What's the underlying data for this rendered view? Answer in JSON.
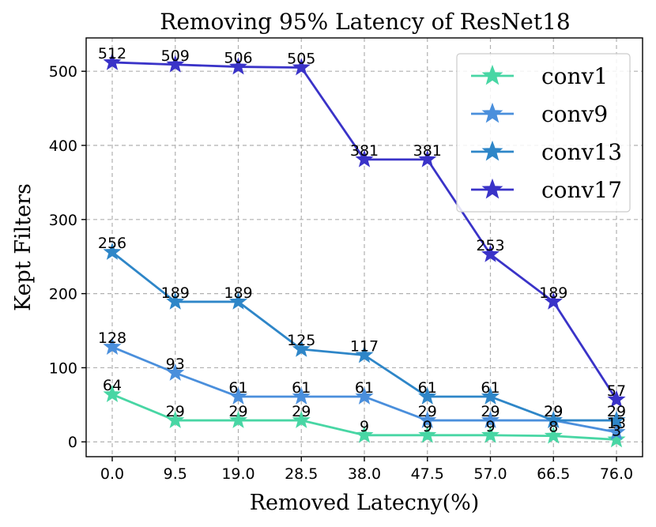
{
  "chart_data": {
    "type": "line",
    "title": "Removing 95%  Latency of ResNet18",
    "xlabel": "Removed Latecny(%)",
    "ylabel": "Kept Filters",
    "x": [
      0.0,
      9.5,
      19.0,
      28.5,
      38.0,
      47.5,
      57.0,
      66.5,
      76.0
    ],
    "x_tick_labels": [
      "0.0",
      "9.5",
      "19.0",
      "28.5",
      "38.0",
      "47.5",
      "57.0",
      "66.5",
      "76.0"
    ],
    "y_ticks": [
      0,
      100,
      200,
      300,
      400,
      500
    ],
    "y_tick_labels": [
      "0",
      "100",
      "200",
      "300",
      "400",
      "500"
    ],
    "ylim": [
      -20,
      545
    ],
    "grid": true,
    "legend_position": "top-right",
    "series": [
      {
        "name": "conv1",
        "color": "#48d6a4",
        "values": [
          64,
          29,
          29,
          29,
          9,
          9,
          9,
          8,
          3
        ]
      },
      {
        "name": "conv9",
        "color": "#4a8fdc",
        "values": [
          128,
          93,
          61,
          61,
          61,
          29,
          29,
          29,
          13
        ]
      },
      {
        "name": "conv13",
        "color": "#2e86c8",
        "values": [
          256,
          189,
          189,
          125,
          117,
          61,
          61,
          29,
          29
        ]
      },
      {
        "name": "conv17",
        "color": "#3a33c8",
        "values": [
          512,
          509,
          506,
          505,
          381,
          381,
          253,
          189,
          57
        ]
      }
    ]
  }
}
